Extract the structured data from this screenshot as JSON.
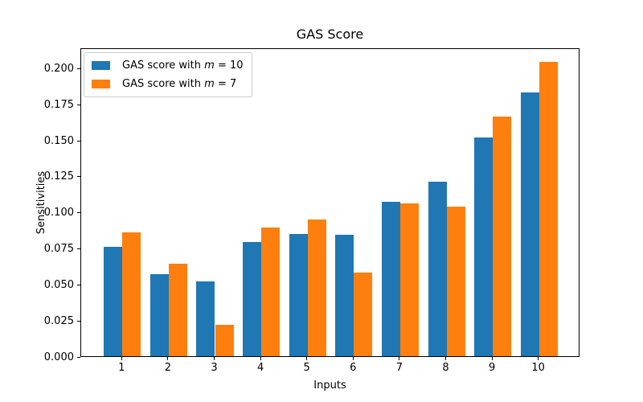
{
  "legend": {
    "items": [
      {
        "key": "m10",
        "prefix": "GAS score with ",
        "variable": "m",
        "suffix": " = 10",
        "color": "#1f77b4"
      },
      {
        "key": "m7",
        "prefix": "GAS score with ",
        "variable": "m",
        "suffix": " = 7",
        "color": "#ff7f0e"
      }
    ]
  },
  "chart_data": {
    "type": "bar",
    "title": "GAS Score",
    "xlabel": "Inputs",
    "ylabel": "Sensitivities",
    "categories": [
      1,
      2,
      3,
      4,
      5,
      6,
      7,
      8,
      9,
      10
    ],
    "series": [
      {
        "key": "m10",
        "name": "GAS score with m = 10",
        "color": "#1f77b4",
        "values": [
          0.076,
          0.057,
          0.052,
          0.079,
          0.085,
          0.084,
          0.107,
          0.121,
          0.152,
          0.183
        ]
      },
      {
        "key": "m7",
        "name": "GAS score with m = 7",
        "color": "#ff7f0e",
        "values": [
          0.086,
          0.064,
          0.022,
          0.089,
          0.095,
          0.058,
          0.106,
          0.104,
          0.166,
          0.204
        ]
      }
    ],
    "bar_width": 0.4,
    "xlim": [
      0.11,
      10.89
    ],
    "ylim": [
      0,
      0.2142
    ],
    "yticks": [
      0,
      0.025,
      0.05,
      0.075,
      0.1,
      0.125,
      0.15,
      0.175,
      0.2
    ],
    "ytick_format_decimals": 3,
    "grid": false,
    "legend_position": "upper left"
  }
}
